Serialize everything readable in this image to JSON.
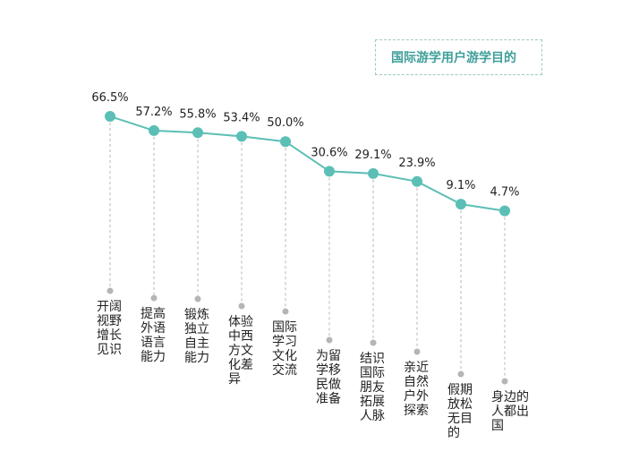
{
  "chart_data": {
    "type": "line",
    "title": "国际游学用户游学目的",
    "categories": [
      "开阔视野增长见识",
      "提高外语语言能力",
      "锻炼独立自主能力",
      "体验中西方文化差异",
      "国际学习文化交流",
      "为留学移民做准备",
      "结识国际朋友拓展人脉",
      "亲近自然户外探索",
      "假期放松无目的",
      "身边的人都出国"
    ],
    "values": [
      66.5,
      57.2,
      55.8,
      53.4,
      50.0,
      30.6,
      29.1,
      23.9,
      9.1,
      4.7
    ],
    "value_labels": [
      "66.5%",
      "57.2%",
      "55.8%",
      "53.4%",
      "50.0%",
      "30.6%",
      "29.1%",
      "23.9%",
      "9.1%",
      "4.7%"
    ],
    "unit": "%",
    "xlabel": "",
    "ylabel": "",
    "grid": false,
    "legend": "none",
    "colors": {
      "line": "#5bbfb5",
      "marker": "#5bbfb5",
      "guide": "#b5b5b5",
      "label": "#222222",
      "title": "#3f9f9a"
    }
  }
}
